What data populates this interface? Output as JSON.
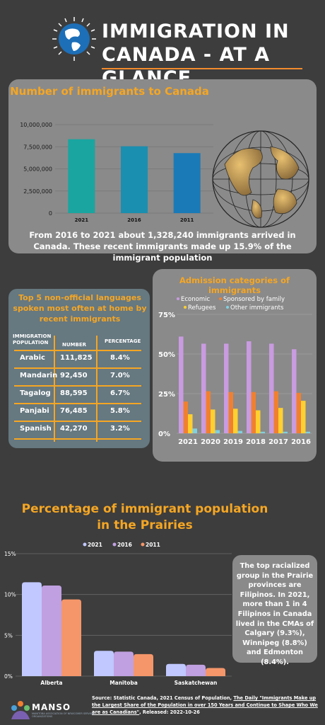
{
  "header": {
    "title_line1": "IMMIGRATION IN",
    "title_line2": "CANADA - AT A GLANCE"
  },
  "colors": {
    "background": "#3d3d3d",
    "accent": "#f5a623",
    "panel": "#8a8a8a",
    "lang_panel": "#667880"
  },
  "panel_immigrants": {
    "title": "Number of immigrants to Canada",
    "description": "From 2016 to 2021 about 1,328,240 immigrants arrived in Canada. These recent immigrants made up 15.9% of the immigrant population"
  },
  "languages": {
    "title": "Top 5 non-official languages spoken most often at home by recent immigrants",
    "headers": {
      "population": "IMMIGRATION POPULATION",
      "number": "NUMBER",
      "percentage": "PERCENTAGE"
    },
    "rows": [
      {
        "lang": "Arabic",
        "number": "111,825",
        "pct": "8.4%"
      },
      {
        "lang": "Mandarin",
        "number": "92,450",
        "pct": "7.0%"
      },
      {
        "lang": "Tagalog",
        "number": "88,595",
        "pct": "6.7%"
      },
      {
        "lang": "Panjabi",
        "number": "76,485",
        "pct": "5.8%"
      },
      {
        "lang": "Spanish",
        "number": "42,270",
        "pct": "3.2%"
      }
    ]
  },
  "admission": {
    "title": "Admission categories of immigrants"
  },
  "prairies": {
    "title_line1": "Percentage of immigrant population",
    "title_line2": "in the Prairies",
    "note": "The top racialized group in the Prairie provinces are Filipinos. In 2021, more than 1 in 4 Filipinos in Canada lived in the CMAs of Calgary (9.3%), Winnipeg (8.8%) and Edmonton (8.4%)."
  },
  "footer": {
    "source_prefix": "Source: Statistic Canada, 2021 Census of Population, ",
    "source_link": "The Daily \"Immigrants Make up the Largest Share of the Population in over 150 Years and Continue to Shape Who We are as Canadians\"",
    "source_suffix": ", Released: 2022-10-26",
    "logo": "MANSO",
    "logo_sub": "MANITOBA ASSOCIATION OF NEWCOMER SERVING ORGANIZATIONS"
  },
  "chart_data": [
    {
      "type": "bar",
      "title": "Number of immigrants to Canada",
      "categories": [
        "2021",
        "2016",
        "2011"
      ],
      "values": [
        8350000,
        7550000,
        6780000
      ],
      "ylim": [
        0,
        10000000
      ],
      "yticks": [
        "0",
        "2,500,000",
        "5,000,000",
        "7,500,000",
        "10,000,000"
      ],
      "colors": [
        "#1aa5a0",
        "#1a8fb0",
        "#1a7ab8"
      ]
    },
    {
      "type": "bar",
      "title": "Admission categories of immigrants",
      "categories": [
        "2021",
        "2020",
        "2019",
        "2018",
        "2017",
        "2016"
      ],
      "ylim": [
        0,
        0.75
      ],
      "yticks": [
        "0%",
        "25%",
        "50%",
        "75%"
      ],
      "legend": "top",
      "series": [
        {
          "name": "Economic",
          "color": "#c99be0",
          "values": [
            0.61,
            0.565,
            0.565,
            0.58,
            0.565,
            0.53
          ]
        },
        {
          "name": "Sponsored by family",
          "color": "#f08030",
          "values": [
            0.2,
            0.265,
            0.26,
            0.26,
            0.265,
            0.255
          ]
        },
        {
          "name": "Refugees",
          "color": "#ffd030",
          "values": [
            0.12,
            0.15,
            0.155,
            0.145,
            0.16,
            0.205
          ]
        },
        {
          "name": "Other immigrants",
          "color": "#80d0e0",
          "values": [
            0.03,
            0.02,
            0.015,
            0.01,
            0.01,
            0.01
          ]
        }
      ]
    },
    {
      "type": "bar",
      "title": "Percentage of immigrant population in the Prairies",
      "categories": [
        "Alberta",
        "Manitoba",
        "Saskatchewan"
      ],
      "ylim": [
        0,
        15
      ],
      "yticks": [
        "0%",
        "5%",
        "10%",
        "15%"
      ],
      "legend": "top",
      "series": [
        {
          "name": "2021",
          "color": "#c0c8ff",
          "values": [
            11.5,
            3.1,
            1.5
          ]
        },
        {
          "name": "2016",
          "color": "#c0a0e0",
          "values": [
            11.1,
            3.0,
            1.4
          ]
        },
        {
          "name": "2011",
          "color": "#f5966a",
          "values": [
            9.4,
            2.7,
            1.0
          ]
        }
      ]
    }
  ]
}
